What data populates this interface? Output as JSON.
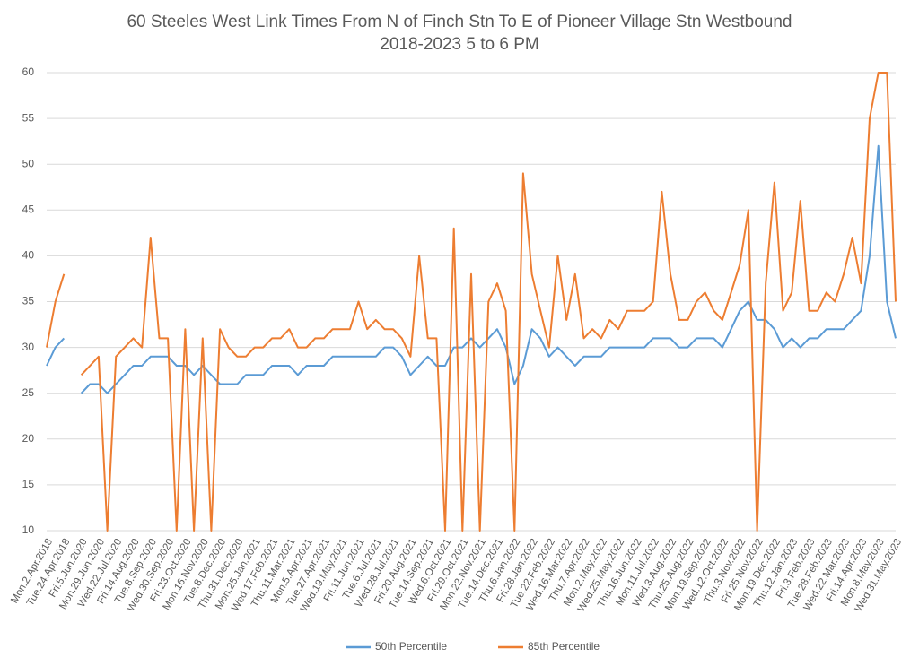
{
  "chart_data": {
    "type": "line",
    "title": "60 Steeles West Link Times From N of Finch Stn To E of Pioneer Village Stn Westbound",
    "subtitle": "2018-2023 5 to 6 PM",
    "categories": [
      "Mon.2.Apr.2018",
      null,
      "Tue.24.Apr.2018",
      null,
      "Fri.5.Jun.2020",
      null,
      "Mon.29.Jun.2020",
      null,
      "Wed.22.Jul.2020",
      null,
      "Fri.14.Aug.2020",
      null,
      "Tue.8.Sep.2020",
      null,
      "Wed.30.Sep.2020",
      null,
      "Fri.23.Oct.2020",
      null,
      "Mon.16.Nov.2020",
      null,
      "Tue.8.Dec.2020",
      null,
      "Thu.31.Dec.2020",
      null,
      "Mon.25.Jan.2021",
      null,
      "Wed.17.Feb.2021",
      null,
      "Thu.11.Mar.2021",
      null,
      "Mon.5.Apr.2021",
      null,
      "Tue.27.Apr.2021",
      null,
      "Wed.19.May.2021",
      null,
      "Fri.11.Jun.2021",
      null,
      "Tue.6.Jul.2021",
      null,
      "Wed.28.Jul.2021",
      null,
      "Fri.20.Aug.2021",
      null,
      "Tue.14.Sep.2021",
      null,
      "Wed.6.Oct.2021",
      null,
      "Fri.29.Oct.2021",
      null,
      "Mon.22.Nov.2021",
      null,
      "Tue.14.Dec.2021",
      null,
      "Thu.6.Jan.2022",
      null,
      "Fri.28.Jan.2022",
      null,
      "Tue.22.Feb.2022",
      null,
      "Wed.16.Mar.2022",
      null,
      "Thu.7.Apr.2022",
      null,
      "Mon.2.May.2022",
      null,
      "Wed.25.May.2022",
      null,
      "Thu.16.Jun.2022",
      null,
      "Mon.11.Jul.2022",
      null,
      "Wed.3.Aug.2022",
      null,
      "Thu.25.Aug.2022",
      null,
      "Mon.19.Sep.2022",
      null,
      "Wed.12.Oct.2022",
      null,
      "Thu.3.Nov.2022",
      null,
      "Fri.25.Nov.2022",
      null,
      "Mon.19.Dec.2022",
      null,
      "Thu.12.Jan.2023",
      null,
      "Fri.3.Feb.2023",
      null,
      "Tue.28.Feb.2023",
      null,
      "Wed.22.Mar.2023",
      null,
      "Fri.14.Apr.2023",
      null,
      "Mon.8.May.2023",
      null,
      "Wed.31.May.2023"
    ],
    "series": [
      {
        "name": "50th Percentile",
        "color": "#5b9bd5",
        "values": [
          28,
          30,
          31,
          null,
          25,
          26,
          26,
          25,
          26,
          27,
          28,
          28,
          29,
          29,
          29,
          28,
          28,
          27,
          28,
          27,
          26,
          26,
          26,
          27,
          27,
          27,
          28,
          28,
          28,
          27,
          28,
          28,
          28,
          29,
          29,
          29,
          29,
          29,
          29,
          30,
          30,
          29,
          27,
          28,
          29,
          28,
          28,
          30,
          30,
          31,
          30,
          31,
          32,
          30,
          26,
          28,
          32,
          31,
          29,
          30,
          29,
          28,
          29,
          29,
          29,
          30,
          30,
          30,
          30,
          30,
          31,
          31,
          31,
          30,
          30,
          31,
          31,
          31,
          30,
          32,
          34,
          35,
          33,
          33,
          32,
          30,
          31,
          30,
          31,
          31,
          32,
          32,
          32,
          33,
          34,
          40,
          52,
          35,
          31
        ]
      },
      {
        "name": "85th Percentile",
        "color": "#ed7d31",
        "values": [
          30,
          35,
          38,
          null,
          27,
          28,
          29,
          10,
          29,
          30,
          31,
          30,
          42,
          31,
          31,
          10,
          32,
          10,
          31,
          10,
          32,
          30,
          29,
          29,
          30,
          30,
          31,
          31,
          32,
          30,
          30,
          31,
          31,
          32,
          32,
          32,
          35,
          32,
          33,
          32,
          32,
          31,
          29,
          40,
          31,
          31,
          10,
          43,
          10,
          38,
          10,
          35,
          37,
          34,
          10,
          49,
          38,
          34,
          30,
          40,
          33,
          38,
          31,
          32,
          31,
          33,
          32,
          34,
          34,
          34,
          35,
          47,
          38,
          33,
          33,
          35,
          36,
          34,
          33,
          36,
          39,
          45,
          10,
          37,
          48,
          34,
          36,
          46,
          34,
          34,
          36,
          35,
          38,
          42,
          37,
          55,
          60,
          60,
          35
        ]
      }
    ],
    "ylim": [
      10,
      60
    ],
    "yticks": [
      10,
      15,
      20,
      25,
      30,
      35,
      40,
      45,
      50,
      55,
      60
    ],
    "grid": true,
    "legend": "bottom"
  }
}
